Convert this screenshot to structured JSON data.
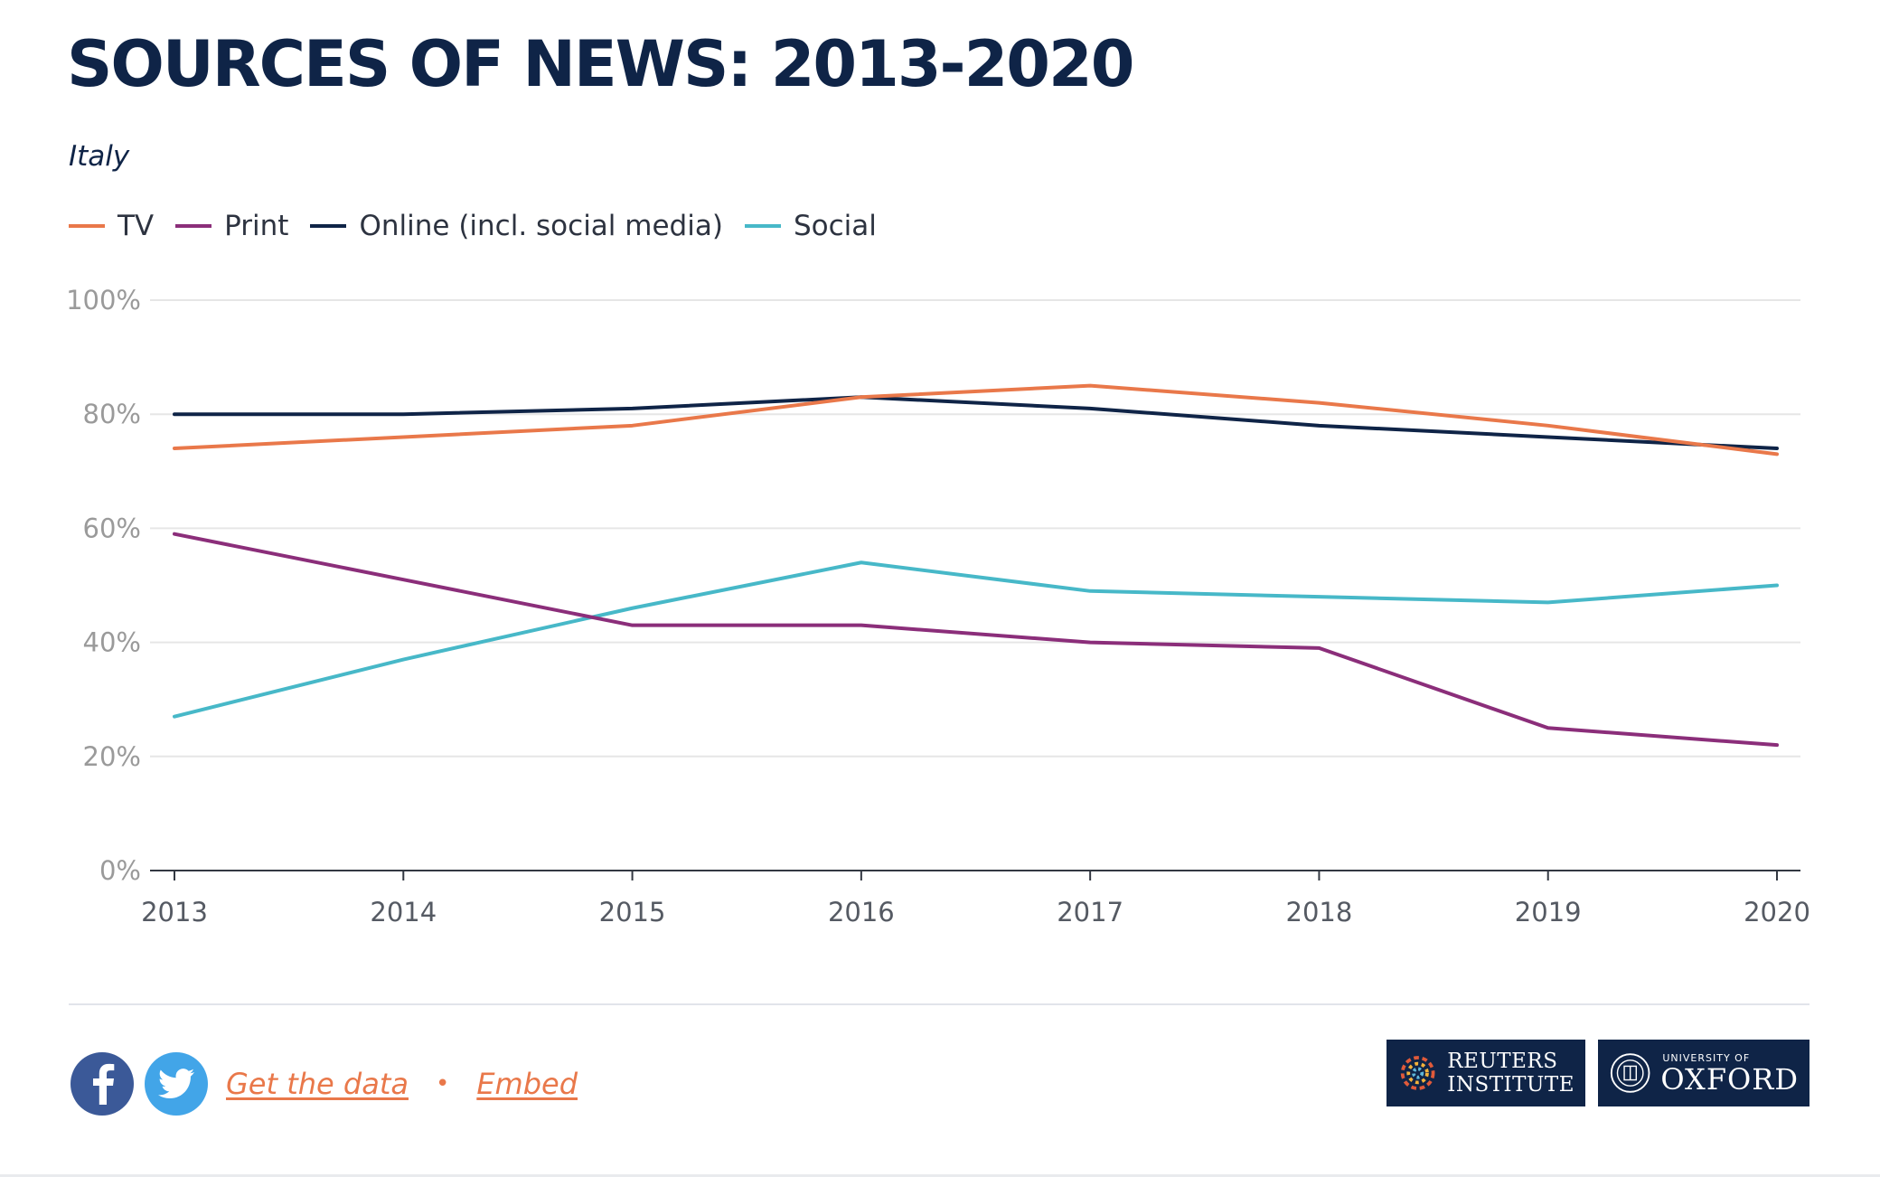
{
  "header": {
    "title": "SOURCES OF NEWS: 2013-2020",
    "subtitle": "Italy"
  },
  "colors": {
    "tv": "#e9784a",
    "print": "#8b2e7a",
    "online": "#0f2447",
    "social": "#47b8c8"
  },
  "legend": [
    {
      "label": "TV",
      "color": "#e9784a"
    },
    {
      "label": "Print",
      "color": "#8b2e7a"
    },
    {
      "label": "Online (incl. social media)",
      "color": "#0f2447"
    },
    {
      "label": "Social",
      "color": "#47b8c8"
    }
  ],
  "chart_data": {
    "type": "line",
    "title": "SOURCES OF NEWS: 2013-2020",
    "subtitle": "Italy",
    "x": [
      "2013",
      "2014",
      "2015",
      "2016",
      "2017",
      "2018",
      "2019",
      "2020"
    ],
    "ylim": [
      0,
      100
    ],
    "yticks": [
      0,
      20,
      40,
      60,
      80,
      100
    ],
    "ytick_labels": [
      "0%",
      "20%",
      "40%",
      "60%",
      "80%",
      "100%"
    ],
    "grid": true,
    "legend_position": "top-left",
    "series": [
      {
        "name": "TV",
        "key": "tv",
        "values": [
          74,
          76,
          78,
          83,
          85,
          82,
          78,
          73
        ]
      },
      {
        "name": "Print",
        "key": "print",
        "values": [
          59,
          51,
          43,
          43,
          40,
          39,
          25,
          22
        ]
      },
      {
        "name": "Online (incl. social media)",
        "key": "online",
        "values": [
          80,
          80,
          81,
          83,
          81,
          78,
          76,
          74
        ]
      },
      {
        "name": "Social",
        "key": "social",
        "values": [
          27,
          37,
          46,
          54,
          49,
          48,
          47,
          50
        ]
      }
    ]
  },
  "footer": {
    "facebook_icon": "facebook-icon",
    "twitter_icon": "twitter-icon",
    "get_data_label": "Get the data",
    "separator": "•",
    "embed_label": "Embed",
    "reuters_logo_text": "REUTERS\nINSTITUTE",
    "oxford_small": "UNIVERSITY OF",
    "oxford_big": "OXFORD"
  }
}
